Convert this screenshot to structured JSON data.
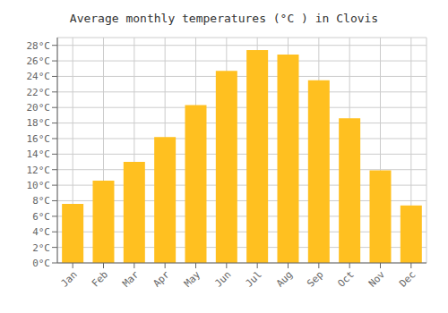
{
  "chart_data": {
    "type": "bar",
    "title": "Average monthly temperatures (°C ) in Clovis",
    "categories": [
      "Jan",
      "Feb",
      "Mar",
      "Apr",
      "May",
      "Jun",
      "Jul",
      "Aug",
      "Sep",
      "Oct",
      "Nov",
      "Dec"
    ],
    "values": [
      7.6,
      10.6,
      13.0,
      16.2,
      20.3,
      24.7,
      27.4,
      26.8,
      23.5,
      18.6,
      11.9,
      7.4
    ],
    "color": "#FFC020",
    "ylim": [
      0,
      29
    ],
    "yticks": [
      {
        "value": 0,
        "label": "0°C"
      },
      {
        "value": 2,
        "label": "2°C"
      },
      {
        "value": 4,
        "label": "4°C"
      },
      {
        "value": 6,
        "label": "6°C"
      },
      {
        "value": 8,
        "label": "8°C"
      },
      {
        "value": 10,
        "label": "10°C"
      },
      {
        "value": 12,
        "label": "12°C"
      },
      {
        "value": 14,
        "label": "14°C"
      },
      {
        "value": 16,
        "label": "16°C"
      },
      {
        "value": 18,
        "label": "18°C"
      },
      {
        "value": 20,
        "label": "20°C"
      },
      {
        "value": 22,
        "label": "22°C"
      },
      {
        "value": 24,
        "label": "24°C"
      },
      {
        "value": 26,
        "label": "26°C"
      },
      {
        "value": 28,
        "label": "28°C"
      }
    ],
    "grid": true
  }
}
